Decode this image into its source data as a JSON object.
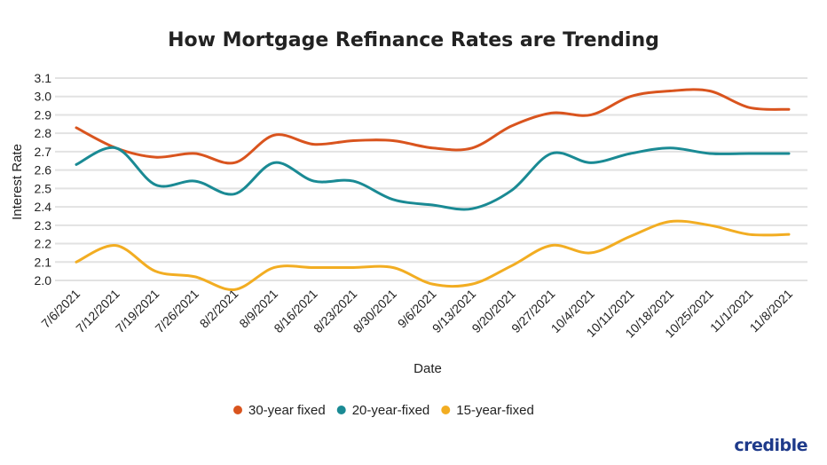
{
  "chart_data": {
    "type": "line",
    "title": "How Mortgage Refinance Rates are Trending",
    "xlabel": "Date",
    "ylabel": "Interest Rate",
    "ylim": [
      2.0,
      3.1
    ],
    "yticks": [
      "2.0",
      "2.1",
      "2.2",
      "2.3",
      "2.4",
      "2.5",
      "2.6",
      "2.7",
      "2.8",
      "2.9",
      "3.0",
      "3.1"
    ],
    "grid": true,
    "legend_position": "bottom",
    "categories": [
      "7/6/2021",
      "7/12/2021",
      "7/19/2021",
      "7/26/2021",
      "8/2/2021",
      "8/9/2021",
      "8/16/2021",
      "8/23/2021",
      "8/30/2021",
      "9/6/2021",
      "9/13/2021",
      "9/20/2021",
      "9/27/2021",
      "10/4/2021",
      "10/11/2021",
      "10/18/2021",
      "10/25/2021",
      "11/1/2021",
      "11/8/2021"
    ],
    "series": [
      {
        "name": "30-year fixed",
        "color": "#d9541e",
        "values": [
          2.83,
          2.72,
          2.67,
          2.69,
          2.64,
          2.79,
          2.74,
          2.76,
          2.76,
          2.72,
          2.72,
          2.84,
          2.91,
          2.9,
          3.0,
          3.03,
          3.03,
          2.94,
          2.93
        ]
      },
      {
        "name": "20-year-fixed",
        "color": "#1a8a94",
        "values": [
          2.63,
          2.72,
          2.52,
          2.54,
          2.47,
          2.64,
          2.54,
          2.54,
          2.44,
          2.41,
          2.39,
          2.49,
          2.69,
          2.64,
          2.69,
          2.72,
          2.69,
          2.69,
          2.69
        ]
      },
      {
        "name": "15-year-fixed",
        "color": "#f2ad22",
        "values": [
          2.1,
          2.19,
          2.05,
          2.02,
          1.95,
          2.07,
          2.07,
          2.07,
          2.07,
          1.98,
          1.98,
          2.08,
          2.19,
          2.15,
          2.24,
          2.32,
          2.3,
          2.25,
          2.25
        ]
      }
    ]
  },
  "branding": {
    "logo": "credible"
  }
}
